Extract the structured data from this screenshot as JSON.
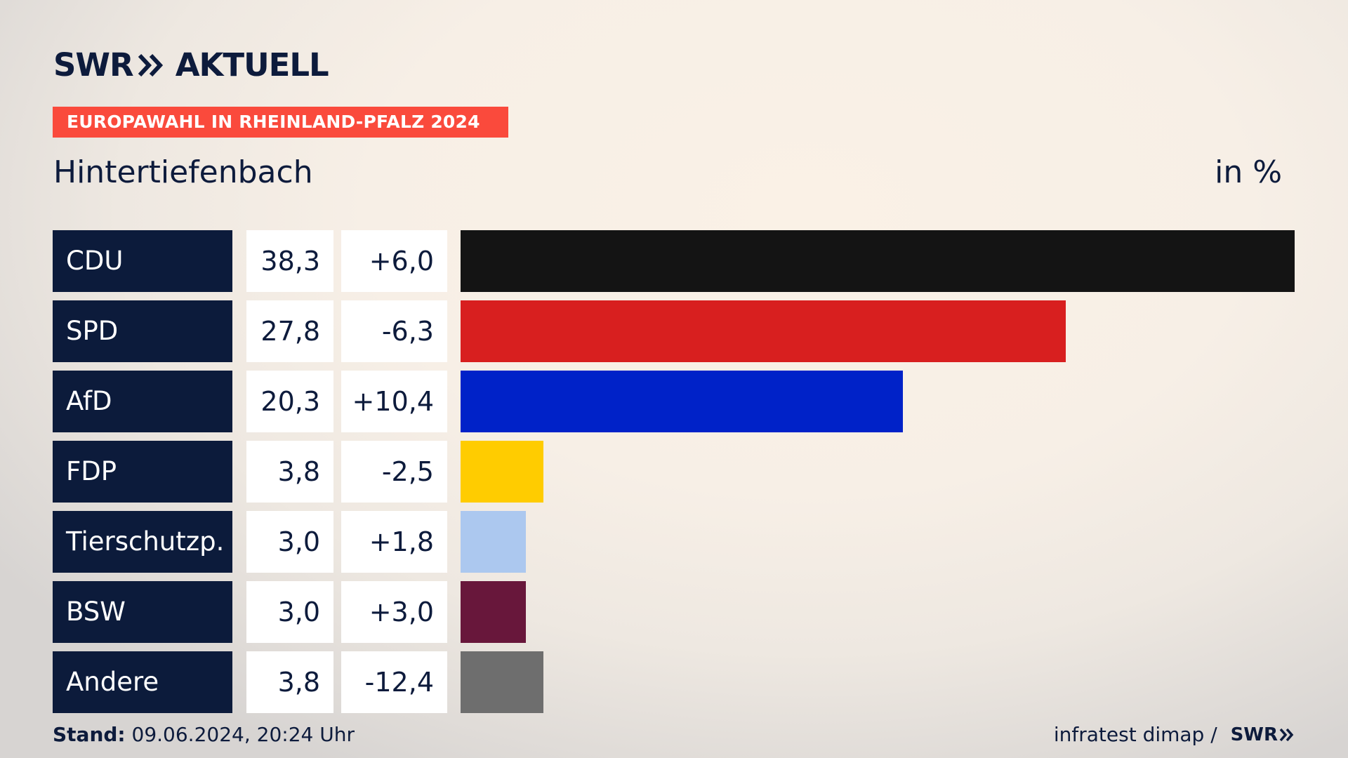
{
  "header": {
    "logo_left": "SWR",
    "logo_right": "AKTUELL",
    "banner": "EUROPAWAHL IN RHEINLAND-PFALZ 2024",
    "place": "Hintertiefenbach",
    "unit": "in %"
  },
  "colors": {
    "navy": "#0c1b3b",
    "banner": "#fa4a3c"
  },
  "chart_data": {
    "type": "bar",
    "orientation": "horizontal",
    "categories": [
      "CDU",
      "SPD",
      "AfD",
      "FDP",
      "Tierschutzp.",
      "BSW",
      "Andere"
    ],
    "values": [
      38.3,
      27.8,
      20.3,
      3.8,
      3.0,
      3.0,
      3.8
    ],
    "value_labels": [
      "38,3",
      "27,8",
      "20,3",
      "3,8",
      "3,0",
      "3,0",
      "3,8"
    ],
    "changes": [
      "+6,0",
      "-6,3",
      "+10,4",
      "-2,5",
      "+1,8",
      "+3,0",
      "-12,4"
    ],
    "bar_colors": [
      "#141414",
      "#d81f1f",
      "#0022c8",
      "#ffcc00",
      "#acc8ef",
      "#68173b",
      "#6e6e6e"
    ],
    "unit": "in %"
  },
  "footer": {
    "stand_label": "Stand:",
    "stand_value": " 09.06.2024, 20:24 Uhr",
    "source": "infratest dimap / ",
    "source_logo": "SWR"
  }
}
